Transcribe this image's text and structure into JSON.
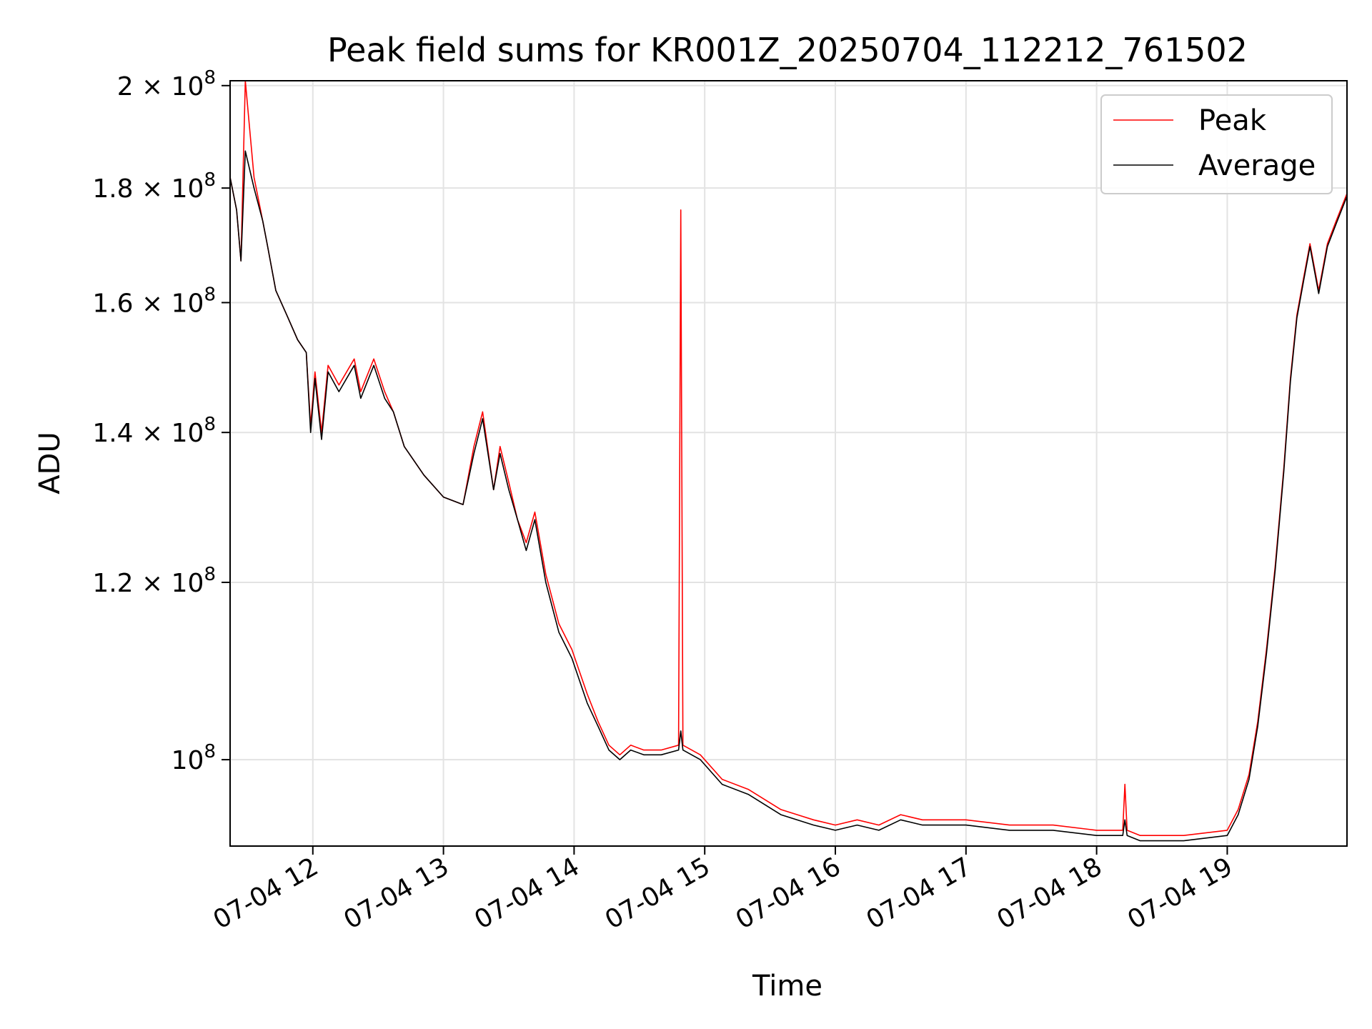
{
  "chart_data": {
    "type": "line",
    "title": "Peak field sums for KR001Z_20250704_112212_761502",
    "xlabel": "Time",
    "ylabel": "ADU",
    "scale": {
      "x": "time",
      "y": "log"
    },
    "xlim": [
      "2025-07-04 11:22",
      "2025-07-04 19:55"
    ],
    "ylim": [
      91500000,
      201000000
    ],
    "grid": true,
    "legend_position": "upper right",
    "x_ticks": [
      {
        "value": "2025-07-04 12:00",
        "label": "07-04 12"
      },
      {
        "value": "2025-07-04 13:00",
        "label": "07-04 13"
      },
      {
        "value": "2025-07-04 14:00",
        "label": "07-04 14"
      },
      {
        "value": "2025-07-04 15:00",
        "label": "07-04 15"
      },
      {
        "value": "2025-07-04 16:00",
        "label": "07-04 16"
      },
      {
        "value": "2025-07-04 17:00",
        "label": "07-04 17"
      },
      {
        "value": "2025-07-04 18:00",
        "label": "07-04 18"
      },
      {
        "value": "2025-07-04 19:00",
        "label": "07-04 19"
      }
    ],
    "y_ticks": [
      {
        "value": 100000000,
        "mantissa": "",
        "exponent": "8"
      },
      {
        "value": 120000000,
        "mantissa": "1.2",
        "exponent": "8"
      },
      {
        "value": 140000000,
        "mantissa": "1.4",
        "exponent": "8"
      },
      {
        "value": 160000000,
        "mantissa": "1.6",
        "exponent": "8"
      },
      {
        "value": 180000000,
        "mantissa": "1.8",
        "exponent": "8"
      },
      {
        "value": 200000000,
        "mantissa": "2",
        "exponent": "8"
      }
    ],
    "tick_base": "10",
    "tick_times": "×",
    "x": [
      "2025-07-04 11:22",
      "2025-07-04 11:25",
      "2025-07-04 11:27",
      "2025-07-04 11:29",
      "2025-07-04 11:33",
      "2025-07-04 11:37",
      "2025-07-04 11:39",
      "2025-07-04 11:43",
      "2025-07-04 11:48",
      "2025-07-04 11:53",
      "2025-07-04 11:57",
      "2025-07-04 11:59",
      "2025-07-04 12:01",
      "2025-07-04 12:04",
      "2025-07-04 12:07",
      "2025-07-04 12:12",
      "2025-07-04 12:19",
      "2025-07-04 12:22",
      "2025-07-04 12:28",
      "2025-07-04 12:33",
      "2025-07-04 12:37",
      "2025-07-04 12:42",
      "2025-07-04 12:51",
      "2025-07-04 13:00",
      "2025-07-04 13:09",
      "2025-07-04 13:14",
      "2025-07-04 13:18",
      "2025-07-04 13:23",
      "2025-07-04 13:26",
      "2025-07-04 13:30",
      "2025-07-04 13:34",
      "2025-07-04 13:38",
      "2025-07-04 13:42",
      "2025-07-04 13:47",
      "2025-07-04 13:53",
      "2025-07-04 13:59",
      "2025-07-04 14:06",
      "2025-07-04 14:11",
      "2025-07-04 14:16",
      "2025-07-04 14:21",
      "2025-07-04 14:26",
      "2025-07-04 14:32",
      "2025-07-04 14:40",
      "2025-07-04 14:48",
      "2025-07-04 14:49",
      "2025-07-04 14:50",
      "2025-07-04 14:58",
      "2025-07-04 15:08",
      "2025-07-04 15:20",
      "2025-07-04 15:35",
      "2025-07-04 15:50",
      "2025-07-04 16:00",
      "2025-07-04 16:10",
      "2025-07-04 16:20",
      "2025-07-04 16:30",
      "2025-07-04 16:40",
      "2025-07-04 17:00",
      "2025-07-04 17:20",
      "2025-07-04 17:40",
      "2025-07-04 18:00",
      "2025-07-04 18:12",
      "2025-07-04 18:13",
      "2025-07-04 18:14",
      "2025-07-04 18:20",
      "2025-07-04 18:40",
      "2025-07-04 19:00",
      "2025-07-04 19:05",
      "2025-07-04 19:10",
      "2025-07-04 19:14",
      "2025-07-04 19:18",
      "2025-07-04 19:22",
      "2025-07-04 19:26",
      "2025-07-04 19:29",
      "2025-07-04 19:32",
      "2025-07-04 19:35",
      "2025-07-04 19:38",
      "2025-07-04 19:42",
      "2025-07-04 19:46",
      "2025-07-04 19:50",
      "2025-07-04 19:55"
    ],
    "series": [
      {
        "name": "Peak",
        "color": "#ff0000",
        "values": [
          182000000,
          176000000,
          167000000,
          201000000,
          182000000,
          174000000,
          170000000,
          162000000,
          158000000,
          154000000,
          152000000,
          141000000,
          149000000,
          140000000,
          150000000,
          147000000,
          151000000,
          146000000,
          151000000,
          146000000,
          143000000,
          138000000,
          134000000,
          131000000,
          130000000,
          138000000,
          143000000,
          132000000,
          138000000,
          133000000,
          128000000,
          125000000,
          129000000,
          121000000,
          115000000,
          112000000,
          107000000,
          104000000,
          101500000,
          100500000,
          101500000,
          101000000,
          101000000,
          101500000,
          176000000,
          101500000,
          100500000,
          98000000,
          97000000,
          95000000,
          94000000,
          93500000,
          94000000,
          93500000,
          94500000,
          94000000,
          94000000,
          93500000,
          93500000,
          93000000,
          93000000,
          97500000,
          93000000,
          92500000,
          92500000,
          93000000,
          95000000,
          98500000,
          104000000,
          112000000,
          122000000,
          135000000,
          148000000,
          158000000,
          164000000,
          170000000,
          162000000,
          170000000,
          174000000,
          179000000
        ]
      },
      {
        "name": "Average",
        "color": "#000000",
        "values": [
          182000000,
          176000000,
          167000000,
          187000000,
          180000000,
          174000000,
          170000000,
          162000000,
          158000000,
          154000000,
          152000000,
          140000000,
          148000000,
          139000000,
          149000000,
          146000000,
          150000000,
          145000000,
          150000000,
          145000000,
          143000000,
          138000000,
          134000000,
          131000000,
          130000000,
          137000000,
          142000000,
          132000000,
          137000000,
          132000000,
          128000000,
          124000000,
          128000000,
          120000000,
          114000000,
          111000000,
          106000000,
          103500000,
          101000000,
          100000000,
          101000000,
          100500000,
          100500000,
          101000000,
          103000000,
          101000000,
          100000000,
          97500000,
          96500000,
          94500000,
          93500000,
          93000000,
          93500000,
          93000000,
          94000000,
          93500000,
          93500000,
          93000000,
          93000000,
          92500000,
          92500000,
          94000000,
          92500000,
          92000000,
          92000000,
          92500000,
          94500000,
          98000000,
          103500000,
          111500000,
          121500000,
          134500000,
          147500000,
          157500000,
          163500000,
          169500000,
          161500000,
          169500000,
          173500000,
          178500000
        ]
      }
    ]
  }
}
